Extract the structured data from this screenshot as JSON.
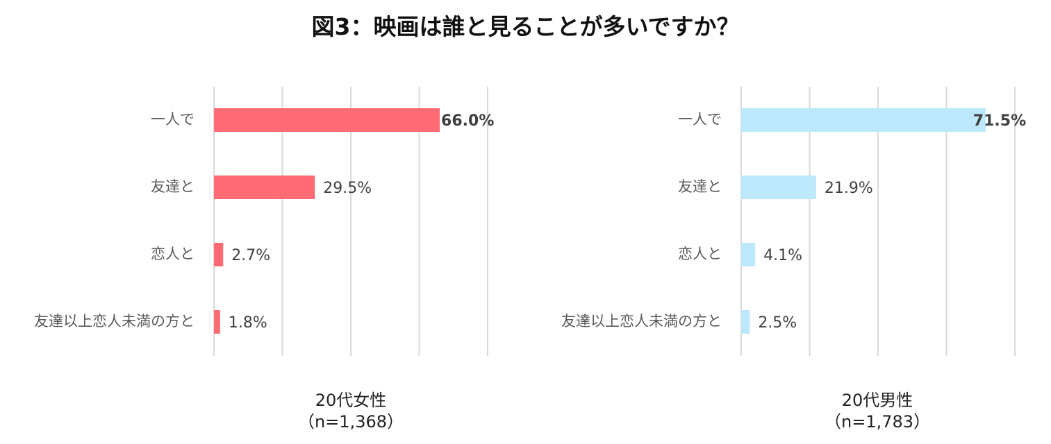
{
  "title": "図3：映画は誰と見ることが多いですか？",
  "colors": {
    "female": "#FF6B74",
    "male": "#BDE8FB",
    "grid": "#D9D9D9"
  },
  "chart_data": [
    {
      "type": "bar",
      "orientation": "horizontal",
      "caption_line1": "20代女性",
      "caption_line2": "（n=1,368）",
      "categories": [
        "一人で",
        "友達と",
        "恋人と",
        "友達以上恋人未満の方と"
      ],
      "values": [
        66.0,
        29.5,
        2.7,
        1.8
      ],
      "value_labels": [
        "66.0%",
        "29.5%",
        "2.7%",
        "1.8%"
      ],
      "xlim": [
        0,
        80
      ],
      "grid": true,
      "color": "#FF6B74"
    },
    {
      "type": "bar",
      "orientation": "horizontal",
      "caption_line1": "20代男性",
      "caption_line2": "（n=1,783）",
      "categories": [
        "一人で",
        "友達と",
        "恋人と",
        "友達以上恋人未満の方と"
      ],
      "values": [
        71.5,
        21.9,
        4.1,
        2.5
      ],
      "value_labels": [
        "71.5%",
        "21.9%",
        "4.1%",
        "2.5%"
      ],
      "xlim": [
        0,
        80
      ],
      "grid": true,
      "color": "#BDE8FB"
    }
  ]
}
